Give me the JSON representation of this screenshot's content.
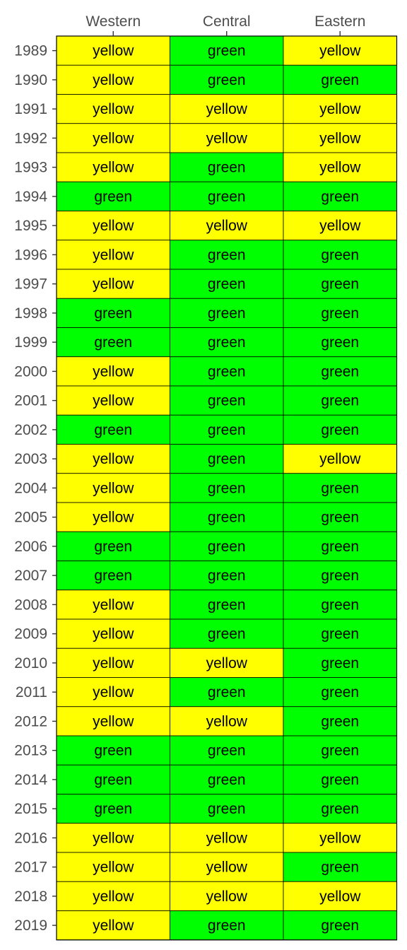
{
  "chart_data": {
    "type": "heatmap",
    "title": "",
    "xlabel": "",
    "ylabel": "",
    "x_axis_position": "top",
    "legend": "none",
    "grid": false,
    "columns": [
      "Western",
      "Central",
      "Eastern"
    ],
    "rows": [
      "1989",
      "1990",
      "1991",
      "1992",
      "1993",
      "1994",
      "1995",
      "1996",
      "1997",
      "1998",
      "1999",
      "2000",
      "2001",
      "2002",
      "2003",
      "2004",
      "2005",
      "2006",
      "2007",
      "2008",
      "2009",
      "2010",
      "2011",
      "2012",
      "2013",
      "2014",
      "2015",
      "2016",
      "2017",
      "2018",
      "2019"
    ],
    "values": [
      [
        "yellow",
        "green",
        "yellow"
      ],
      [
        "yellow",
        "green",
        "green"
      ],
      [
        "yellow",
        "yellow",
        "yellow"
      ],
      [
        "yellow",
        "yellow",
        "yellow"
      ],
      [
        "yellow",
        "green",
        "yellow"
      ],
      [
        "green",
        "green",
        "green"
      ],
      [
        "yellow",
        "yellow",
        "yellow"
      ],
      [
        "yellow",
        "green",
        "green"
      ],
      [
        "yellow",
        "green",
        "green"
      ],
      [
        "green",
        "green",
        "green"
      ],
      [
        "green",
        "green",
        "green"
      ],
      [
        "yellow",
        "green",
        "green"
      ],
      [
        "yellow",
        "green",
        "green"
      ],
      [
        "green",
        "green",
        "green"
      ],
      [
        "yellow",
        "green",
        "yellow"
      ],
      [
        "yellow",
        "green",
        "green"
      ],
      [
        "yellow",
        "green",
        "green"
      ],
      [
        "green",
        "green",
        "green"
      ],
      [
        "green",
        "green",
        "green"
      ],
      [
        "yellow",
        "green",
        "green"
      ],
      [
        "yellow",
        "green",
        "green"
      ],
      [
        "yellow",
        "yellow",
        "green"
      ],
      [
        "yellow",
        "green",
        "green"
      ],
      [
        "yellow",
        "yellow",
        "green"
      ],
      [
        "green",
        "green",
        "green"
      ],
      [
        "green",
        "green",
        "green"
      ],
      [
        "green",
        "green",
        "green"
      ],
      [
        "yellow",
        "yellow",
        "yellow"
      ],
      [
        "yellow",
        "yellow",
        "green"
      ],
      [
        "yellow",
        "yellow",
        "yellow"
      ],
      [
        "yellow",
        "green",
        "green"
      ]
    ],
    "colors": {
      "yellow": "#ffff00",
      "green": "#00ff00",
      "border": "#000000",
      "tick": "#333333",
      "label": "#4d4d4d"
    }
  }
}
